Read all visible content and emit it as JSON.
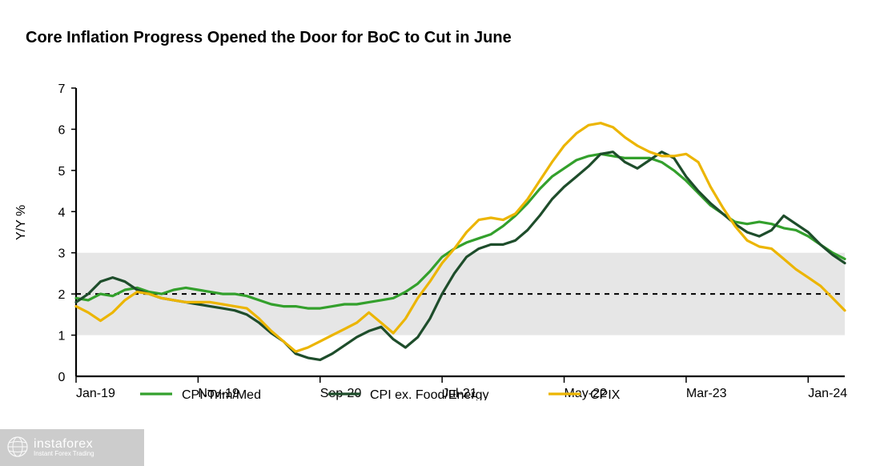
{
  "title": "Core Inflation Progress Opened the Door for BoC to Cut in June",
  "ylabel": "Y/Y %",
  "chart": {
    "type": "line",
    "background_color": "#ffffff",
    "band": {
      "ymin": 1,
      "ymax": 3,
      "fill": "#e6e6e6"
    },
    "baseline_dashed_at_y": 2,
    "axis_color": "#000000",
    "axis_line_width": 2.2,
    "grid_color": "#ffffff",
    "reference_dash_color": "#000000",
    "reference_dash_pattern": "6,6",
    "title_fontsize": 20,
    "title_fontweight": "700",
    "label_fontsize": 16,
    "tick_fontsize": 16,
    "line_width": 3.2,
    "ylim": [
      0,
      7
    ],
    "ytick_step": 1,
    "x_categories": [
      "Jan-19",
      "Feb-19",
      "Mar-19",
      "Apr-19",
      "May-19",
      "Jun-19",
      "Jul-19",
      "Aug-19",
      "Sep-19",
      "Oct-19",
      "Nov-19",
      "Dec-19",
      "Jan-20",
      "Feb-20",
      "Mar-20",
      "Apr-20",
      "May-20",
      "Jun-20",
      "Jul-20",
      "Aug-20",
      "Sep-20",
      "Oct-20",
      "Nov-20",
      "Dec-20",
      "Jan-21",
      "Feb-21",
      "Mar-21",
      "Apr-21",
      "May-21",
      "Jun-21",
      "Jul-21",
      "Aug-21",
      "Sep-21",
      "Oct-21",
      "Nov-21",
      "Dec-21",
      "Jan-22",
      "Feb-22",
      "Mar-22",
      "Apr-22",
      "May-22",
      "Jun-22",
      "Jul-22",
      "Aug-22",
      "Sep-22",
      "Oct-22",
      "Nov-22",
      "Dec-22",
      "Jan-23",
      "Feb-23",
      "Mar-23",
      "Apr-23",
      "May-23",
      "Jun-23",
      "Jul-23",
      "Aug-23",
      "Sep-23",
      "Oct-23",
      "Nov-23",
      "Dec-23",
      "Jan-24",
      "Feb-24",
      "Mar-24",
      "Apr-24"
    ],
    "x_tick_labels_shown": [
      "Jan-19",
      "Nov-19",
      "Sep-20",
      "Jul-21",
      "May-22",
      "Mar-23",
      "Jan-24"
    ],
    "x_tick_indices_shown": [
      0,
      10,
      20,
      30,
      40,
      50,
      60
    ],
    "series": [
      {
        "name": "CPI-Trim/Med",
        "color": "#33a02c",
        "values": [
          1.9,
          1.85,
          2.0,
          1.95,
          2.1,
          2.15,
          2.05,
          2.0,
          2.1,
          2.15,
          2.1,
          2.05,
          2.0,
          2.0,
          1.95,
          1.85,
          1.75,
          1.7,
          1.7,
          1.65,
          1.65,
          1.7,
          1.75,
          1.75,
          1.8,
          1.85,
          1.9,
          2.05,
          2.25,
          2.55,
          2.9,
          3.1,
          3.25,
          3.35,
          3.45,
          3.65,
          3.9,
          4.2,
          4.55,
          4.85,
          5.05,
          5.25,
          5.35,
          5.4,
          5.35,
          5.3,
          5.3,
          5.3,
          5.2,
          5.0,
          4.75,
          4.45,
          4.15,
          3.95,
          3.75,
          3.7,
          3.75,
          3.7,
          3.6,
          3.55,
          3.4,
          3.2,
          3.0,
          2.85
        ]
      },
      {
        "name": "CPI ex. Food/Energy",
        "color": "#1e4d2b",
        "values": [
          1.8,
          2.0,
          2.3,
          2.4,
          2.3,
          2.1,
          2.0,
          1.9,
          1.85,
          1.8,
          1.75,
          1.7,
          1.65,
          1.6,
          1.5,
          1.3,
          1.05,
          0.85,
          0.55,
          0.45,
          0.4,
          0.55,
          0.75,
          0.95,
          1.1,
          1.2,
          0.9,
          0.7,
          0.95,
          1.4,
          2.0,
          2.5,
          2.9,
          3.1,
          3.2,
          3.2,
          3.3,
          3.55,
          3.9,
          4.3,
          4.6,
          4.85,
          5.1,
          5.4,
          5.45,
          5.2,
          5.05,
          5.25,
          5.45,
          5.3,
          4.85,
          4.5,
          4.2,
          3.95,
          3.7,
          3.5,
          3.4,
          3.55,
          3.9,
          3.7,
          3.5,
          3.2,
          2.95,
          2.75
        ]
      },
      {
        "name": "CPIX",
        "color": "#ecb500",
        "values": [
          1.7,
          1.55,
          1.35,
          1.55,
          1.85,
          2.05,
          2.0,
          1.9,
          1.85,
          1.8,
          1.8,
          1.8,
          1.75,
          1.7,
          1.65,
          1.4,
          1.1,
          0.85,
          0.6,
          0.7,
          0.85,
          1.0,
          1.15,
          1.3,
          1.55,
          1.3,
          1.05,
          1.4,
          1.9,
          2.3,
          2.75,
          3.1,
          3.5,
          3.8,
          3.85,
          3.8,
          3.95,
          4.3,
          4.75,
          5.2,
          5.6,
          5.9,
          6.1,
          6.15,
          6.05,
          5.8,
          5.6,
          5.45,
          5.35,
          5.35,
          5.4,
          5.2,
          4.6,
          4.1,
          3.65,
          3.3,
          3.15,
          3.1,
          2.85,
          2.6,
          2.4,
          2.2,
          1.9,
          1.6
        ]
      }
    ],
    "legend": {
      "position": "bottom",
      "fontsize": 16,
      "items": [
        {
          "label": "CPI-Trim/Med",
          "color": "#33a02c"
        },
        {
          "label": "CPI ex. Food/Energy",
          "color": "#1e4d2b"
        },
        {
          "label": "CPIX",
          "color": "#ecb500"
        }
      ]
    }
  },
  "watermark": {
    "brand_big": "instaforex",
    "brand_small": "Instant Forex Trading"
  }
}
